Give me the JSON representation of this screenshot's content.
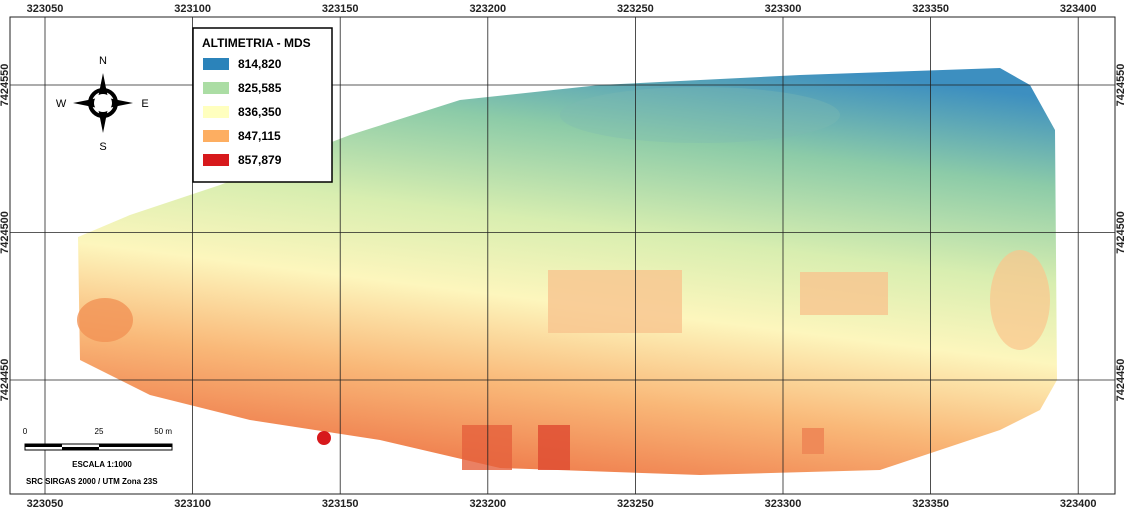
{
  "map": {
    "x_grid": [
      323050,
      323100,
      323150,
      323200,
      323250,
      323300,
      323350,
      323400
    ],
    "y_grid": [
      7424550,
      7424500,
      7424450
    ],
    "legend": {
      "title": "ALTIMETRIA - MDS",
      "entries": [
        {
          "label": "814,820",
          "color": "#2b83ba"
        },
        {
          "label": "825,585",
          "color": "#abdda4"
        },
        {
          "label": "836,350",
          "color": "#ffffbf"
        },
        {
          "label": "847,115",
          "color": "#fdae61"
        },
        {
          "label": "857,879",
          "color": "#d7191c"
        }
      ]
    },
    "compass": {
      "north": "N",
      "south": "S",
      "east": "E",
      "west": "W"
    },
    "scale_bar": {
      "ticks": [
        "0",
        "25",
        "50 m"
      ],
      "scale": "ESCALA 1:1000"
    },
    "crs": "SRC SIRGAS 2000 / UTM Zona 23S"
  }
}
